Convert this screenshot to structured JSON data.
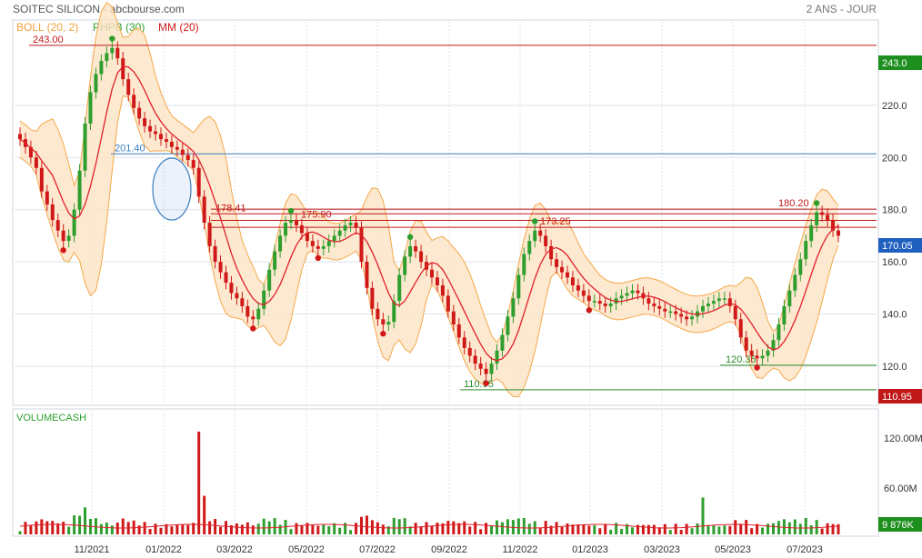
{
  "header": {
    "title": "SOITEC SILICON - abcbourse.com",
    "period": "2 ANS - JOUR"
  },
  "legend": {
    "boll": "BOLL (20, 2)",
    "phpb": "PHPB (30)",
    "mm": "MM (20)"
  },
  "volume_panel": {
    "label": "VOLUMECASH",
    "y_ticks": [
      "120.00M",
      "60.00M"
    ],
    "last_volume_label": "9 876K"
  },
  "colors": {
    "boll_band": "#fde3c4",
    "boll_line": "#f5a84a",
    "ma_line": "#e0202a",
    "up": "#2e9e2e",
    "down": "#d01818",
    "hline_red": "#c01818",
    "hline_blue": "#3a7fc0",
    "hline_green": "#2a8a2a",
    "grid": "#dde3ea"
  },
  "chart_data": {
    "type": "candlestick",
    "x_tick_labels": [
      "11/2021",
      "01/2022",
      "03/2022",
      "05/2022",
      "07/2022",
      "09/2022",
      "11/2022",
      "01/2023",
      "03/2023",
      "05/2023",
      "07/2023"
    ],
    "y_tick_labels": [
      "220.0",
      "200.0",
      "180.0",
      "160.0",
      "140.0",
      "120.0"
    ],
    "ylim": [
      105,
      252
    ],
    "last_price": 170.05,
    "last_price_label": "170.05",
    "hline_labels": {
      "top_right": "243.0",
      "bottom_right": "110.95"
    },
    "horizontal_levels": [
      {
        "label": "243.00",
        "value": 243.0,
        "kind": "resistance"
      },
      {
        "label": "201.40",
        "value": 201.4,
        "kind": "support"
      },
      {
        "label": "178.41",
        "value": 178.41,
        "kind": "resistance"
      },
      {
        "label": "175.90",
        "value": 175.9,
        "kind": "resistance"
      },
      {
        "label": "173.25",
        "value": 173.25,
        "kind": "resistance"
      },
      {
        "label": "180.20",
        "value": 180.2,
        "kind": "resistance"
      },
      {
        "label": "120.35",
        "value": 120.35,
        "kind": "support"
      },
      {
        "label": "110.95",
        "value": 110.95,
        "kind": "support"
      }
    ],
    "close_series": [
      207,
      204,
      200,
      196,
      187,
      182,
      176,
      172,
      168,
      170,
      180,
      195,
      213,
      225,
      232,
      237,
      240,
      242,
      238,
      230,
      224,
      219,
      215,
      212,
      210,
      209,
      207,
      206,
      204,
      203,
      201,
      199,
      196,
      185,
      175,
      166,
      160,
      156,
      152,
      148,
      146,
      143,
      139,
      138,
      142,
      149,
      157,
      164,
      170,
      175,
      176,
      174,
      171,
      168,
      166,
      165,
      166,
      168,
      170,
      172,
      174,
      175,
      173,
      160,
      150,
      142,
      138,
      136,
      137,
      145,
      155,
      162,
      166,
      164,
      160,
      157,
      154,
      151,
      147,
      141,
      136,
      131,
      127,
      124,
      121,
      119,
      117,
      121,
      126,
      132,
      139,
      146,
      155,
      163,
      168,
      172,
      170,
      166,
      161,
      158,
      156,
      154,
      151,
      149,
      147,
      145,
      145,
      144,
      143,
      144,
      146,
      147,
      148,
      149,
      148,
      146,
      144,
      143,
      142,
      141,
      141,
      140,
      139,
      138,
      139,
      141,
      143,
      144,
      145,
      146,
      146,
      143,
      138,
      131,
      126,
      124,
      123,
      124,
      126,
      130,
      136,
      143,
      149,
      155,
      161,
      168,
      174,
      179,
      178,
      176,
      172,
      170
    ]
  }
}
